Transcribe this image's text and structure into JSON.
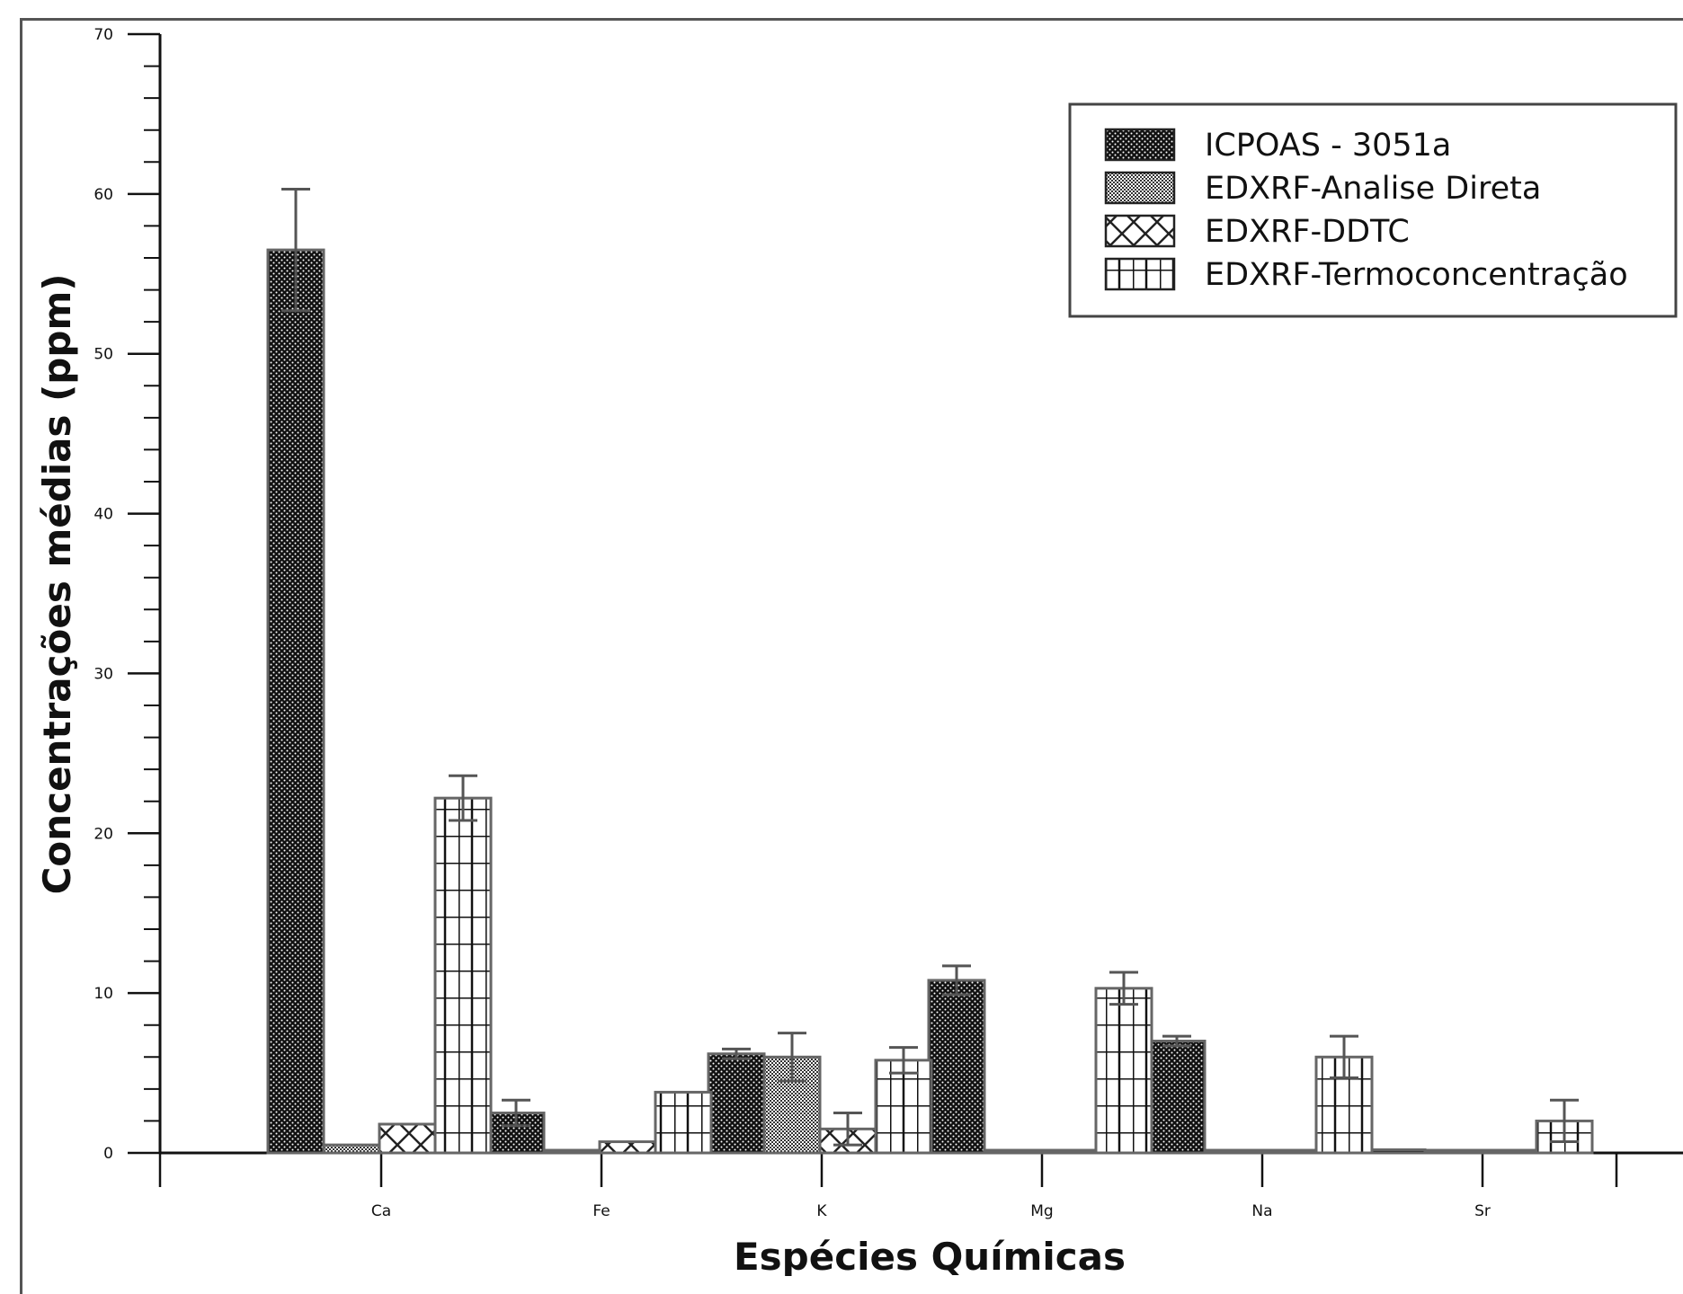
{
  "chart_data": {
    "type": "bar",
    "xlabel": "Espécies Químicas",
    "ylabel": "Concentrações médias (ppm)",
    "categories": [
      "Ca",
      "Fe",
      "K",
      "Mg",
      "Na",
      "Sr"
    ],
    "ylim": [
      0,
      70
    ],
    "ytick_step": 10,
    "legend_position": "top-right",
    "series": [
      {
        "name": "ICPOAS - 3051a",
        "pattern": "dense-dots",
        "values": [
          56.5,
          2.5,
          6.2,
          10.8,
          7.0,
          0.2
        ],
        "errors": [
          3.8,
          0.8,
          0.3,
          0.9,
          0.3,
          0.0
        ]
      },
      {
        "name": "EDXRF-Analise Direta",
        "pattern": "checker",
        "values": [
          0.5,
          0.1,
          6.0,
          0.1,
          0.1,
          0.1
        ],
        "errors": [
          0.0,
          0.0,
          1.5,
          0.0,
          0.0,
          0.0
        ]
      },
      {
        "name": "EDXRF-DDTC",
        "pattern": "crosshatch",
        "values": [
          1.8,
          0.7,
          1.5,
          0.1,
          0.1,
          0.1
        ],
        "errors": [
          0.0,
          0.0,
          1.0,
          0.0,
          0.0,
          0.0
        ]
      },
      {
        "name": "EDXRF-Termoconcentração",
        "pattern": "grid",
        "values": [
          22.2,
          3.8,
          5.8,
          10.3,
          6.0,
          2.0
        ],
        "errors": [
          1.4,
          0.0,
          0.8,
          1.0,
          1.3,
          1.3
        ]
      }
    ]
  }
}
